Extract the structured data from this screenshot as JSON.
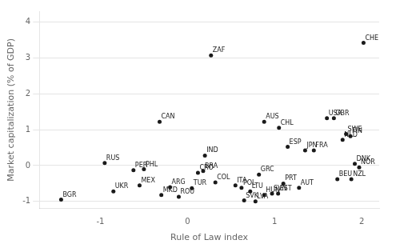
{
  "chart_data": {
    "type": "scatter",
    "xlabel": "Rule of Law index",
    "ylabel": "Market capitalization (% of GDP)",
    "labels": [
      "BGR",
      "RUS",
      "UKR",
      "PER",
      "PHL",
      "MEX",
      "CAN",
      "MKD",
      "ARG",
      "ROU",
      "TUR",
      "CRO",
      "BRA",
      "IND",
      "ZAF",
      "COL",
      "ITA",
      "POL",
      "SVK",
      "LTU",
      "LVA",
      "GRC",
      "AUS",
      "CHL",
      "HUN",
      "SVN",
      "PRT",
      "EST",
      "ESP",
      "AUT",
      "JPN",
      "FRA",
      "USA",
      "GBR",
      "BEU",
      "NLD",
      "SWE",
      "FIN",
      "NZL",
      "DNK",
      "NOR",
      "CHE"
    ],
    "x": [
      -1.45,
      -0.95,
      -0.85,
      -0.62,
      -0.5,
      -0.55,
      -0.32,
      -0.3,
      -0.2,
      -0.1,
      0.05,
      0.12,
      0.18,
      0.2,
      0.27,
      0.32,
      0.55,
      0.62,
      0.65,
      0.72,
      0.78,
      0.82,
      0.88,
      1.05,
      0.88,
      0.97,
      1.1,
      1.04,
      1.15,
      1.28,
      1.35,
      1.45,
      1.6,
      1.68,
      1.72,
      1.78,
      1.82,
      1.87,
      1.88,
      1.92,
      1.97,
      2.02
    ],
    "values": [
      -0.95,
      0.07,
      -0.72,
      -0.13,
      -0.1,
      -0.55,
      1.22,
      -0.82,
      -0.6,
      -0.87,
      -0.63,
      -0.2,
      -0.15,
      0.28,
      3.07,
      -0.47,
      -0.55,
      -0.62,
      -0.97,
      -0.72,
      -1.0,
      -0.25,
      1.22,
      1.05,
      -0.82,
      -0.78,
      -0.5,
      -0.78,
      0.52,
      -0.62,
      0.42,
      0.42,
      1.32,
      1.32,
      -0.38,
      0.72,
      0.88,
      0.82,
      -0.38,
      0.05,
      -0.05,
      3.42
    ],
    "color": "#1a1a1a",
    "xlim": [
      -1.7,
      2.2
    ],
    "ylim": [
      -1.2,
      4.3
    ],
    "xticks": [
      -1,
      0,
      1,
      2
    ],
    "yticks": [
      -1,
      0,
      1,
      2,
      3,
      4
    ],
    "grid": "y"
  }
}
